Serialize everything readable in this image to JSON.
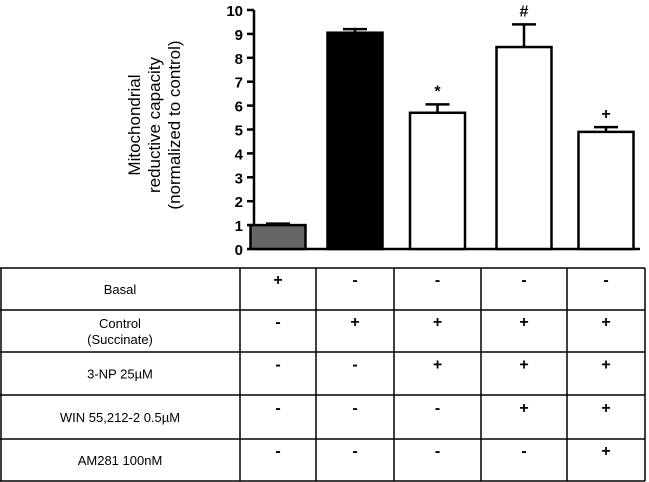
{
  "chart_data": {
    "type": "bar",
    "title": "",
    "ylabel_lines": [
      "Mitochondrial",
      "reductive capacity",
      "(normalized to control)"
    ],
    "xlabel": "",
    "ylim": [
      0,
      10
    ],
    "yticks": [
      0,
      1,
      2,
      3,
      4,
      5,
      6,
      7,
      8,
      9,
      10
    ],
    "grid": false,
    "bars": [
      {
        "value": 1.0,
        "error": 0.06,
        "fill": "#666666",
        "annotation": ""
      },
      {
        "value": 9.05,
        "error": 0.15,
        "fill": "#000000",
        "annotation": ""
      },
      {
        "value": 5.7,
        "error": 0.35,
        "fill": "#ffffff",
        "annotation": "*"
      },
      {
        "value": 8.45,
        "error": 0.95,
        "fill": "#ffffff",
        "annotation": "#"
      },
      {
        "value": 4.9,
        "error": 0.2,
        "fill": "#ffffff",
        "annotation": "+"
      }
    ]
  },
  "conditions_table": {
    "rows": [
      {
        "label": [
          "Basal"
        ],
        "cells": [
          "+",
          "-",
          "-",
          "-",
          "-"
        ]
      },
      {
        "label": [
          "Control",
          "(Succinate)"
        ],
        "cells": [
          "-",
          "+",
          "+",
          "+",
          "+"
        ]
      },
      {
        "label": [
          "3-NP 25µM"
        ],
        "cells": [
          "-",
          "-",
          "+",
          "+",
          "+"
        ]
      },
      {
        "label": [
          "WIN 55,212-2 0.5µM"
        ],
        "cells": [
          "-",
          "-",
          "-",
          "+",
          "+"
        ]
      },
      {
        "label": [
          "AM281 100nM"
        ],
        "cells": [
          "-",
          "-",
          "-",
          "-",
          "+"
        ]
      }
    ]
  }
}
